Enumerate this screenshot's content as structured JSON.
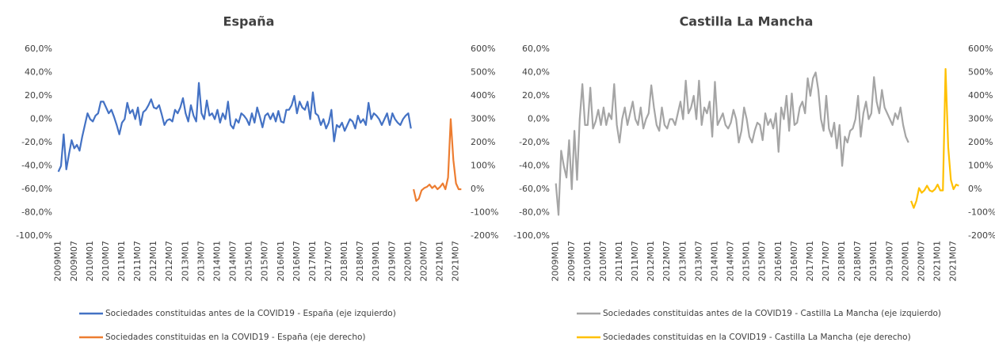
{
  "chart_data": [
    {
      "type": "line",
      "title": "España",
      "categories": [
        "2009M01",
        null,
        null,
        null,
        null,
        null,
        "2009M07",
        null,
        null,
        null,
        null,
        null,
        "2010M01",
        null,
        null,
        null,
        null,
        null,
        "2010M07",
        null,
        null,
        null,
        null,
        null,
        "2011M01",
        null,
        null,
        null,
        null,
        null,
        "2011M07",
        null,
        null,
        null,
        null,
        null,
        "2012M01",
        null,
        null,
        null,
        null,
        null,
        "2012M07",
        null,
        null,
        null,
        null,
        null,
        "2013M01",
        null,
        null,
        null,
        null,
        null,
        "2013M07",
        null,
        null,
        null,
        null,
        null,
        "2014M01",
        null,
        null,
        null,
        null,
        null,
        "2014M07",
        null,
        null,
        null,
        null,
        null,
        "2015M01",
        null,
        null,
        null,
        null,
        null,
        "2015M07",
        null,
        null,
        null,
        null,
        null,
        "2016M01",
        null,
        null,
        null,
        null,
        null,
        "2016M07",
        null,
        null,
        null,
        null,
        null,
        "2017M01",
        null,
        null,
        null,
        null,
        null,
        "2017M07",
        null,
        null,
        null,
        null,
        null,
        "2018M01",
        null,
        null,
        null,
        null,
        null,
        "2018M07",
        null,
        null,
        null,
        null,
        null,
        "2019M01",
        null,
        null,
        null,
        null,
        null,
        "2019M07",
        null,
        null,
        null,
        null,
        null,
        "2020M01",
        null,
        null,
        null,
        null,
        null,
        "2020M07",
        null,
        null,
        null,
        null,
        null,
        "2021M01",
        null,
        null,
        null,
        null,
        null,
        "2021M07",
        null,
        null
      ],
      "series": [
        {
          "name": "Sociedades constituidas antes de la COVID19 - España (eje izquierdo)",
          "color": "#4472c4",
          "axis": "y",
          "values": [
            -45,
            -40,
            -13,
            -43,
            -30,
            -18,
            -25,
            -22,
            -27,
            -15,
            -5,
            5,
            0,
            -2,
            3,
            5,
            15,
            15,
            10,
            5,
            8,
            2,
            -5,
            -13,
            -3,
            0,
            14,
            5,
            8,
            0,
            10,
            -5,
            6,
            8,
            12,
            17,
            10,
            9,
            12,
            4,
            -5,
            -1,
            0,
            -2,
            8,
            5,
            10,
            18,
            5,
            -2,
            12,
            3,
            -2,
            31,
            5,
            0,
            16,
            3,
            5,
            0,
            8,
            -3,
            5,
            0,
            15,
            -5,
            -8,
            0,
            -3,
            5,
            3,
            0,
            -5,
            5,
            -3,
            10,
            2,
            -7,
            3,
            5,
            0,
            5,
            -2,
            7,
            -2,
            -3,
            8,
            8,
            12,
            20,
            5,
            15,
            10,
            8,
            15,
            0,
            23,
            5,
            3,
            -5,
            0,
            -8,
            -3,
            8,
            -19,
            -5,
            -7,
            -3,
            -10,
            -5,
            0,
            -2,
            -8,
            3,
            -3,
            0,
            -5,
            14,
            0,
            5,
            3,
            0,
            -5,
            0,
            5,
            -5,
            5,
            0,
            -3,
            -5,
            0,
            3,
            5,
            -8,
            null,
            null,
            null,
            null,
            null,
            null,
            null,
            null,
            null,
            null,
            null,
            null,
            null,
            null,
            null,
            null,
            null,
            null,
            null
          ]
        },
        {
          "name": "Sociedades constituidas en la COVID19 - España (eje derecho)",
          "color": "#ed7d31",
          "axis": "y2",
          "values": [
            null,
            null,
            null,
            null,
            null,
            null,
            null,
            null,
            null,
            null,
            null,
            null,
            null,
            null,
            null,
            null,
            null,
            null,
            null,
            null,
            null,
            null,
            null,
            null,
            null,
            null,
            null,
            null,
            null,
            null,
            null,
            null,
            null,
            null,
            null,
            null,
            null,
            null,
            null,
            null,
            null,
            null,
            null,
            null,
            null,
            null,
            null,
            null,
            null,
            null,
            null,
            null,
            null,
            null,
            null,
            null,
            null,
            null,
            null,
            null,
            null,
            null,
            null,
            null,
            null,
            null,
            null,
            null,
            null,
            null,
            null,
            null,
            null,
            null,
            null,
            null,
            null,
            null,
            null,
            null,
            null,
            null,
            null,
            null,
            null,
            null,
            null,
            null,
            null,
            null,
            null,
            null,
            null,
            null,
            null,
            null,
            null,
            null,
            null,
            null,
            null,
            null,
            null,
            null,
            null,
            null,
            null,
            null,
            null,
            null,
            null,
            null,
            null,
            null,
            null,
            null,
            null,
            null,
            null,
            null,
            null,
            null,
            null,
            null,
            null,
            null,
            null,
            null,
            null,
            null,
            null,
            null,
            null,
            null,
            0,
            -50,
            -40,
            -5,
            5,
            10,
            20,
            5,
            15,
            0,
            10,
            25,
            0,
            50,
            300,
            125,
            25,
            0,
            0
          ]
        }
      ],
      "ylim": [
        -100,
        60
      ],
      "yticks": [
        {
          "value": -100,
          "label": "-100,0%"
        },
        {
          "value": -80,
          "label": "-80,0%"
        },
        {
          "value": -60,
          "label": "-60,0%"
        },
        {
          "value": -40,
          "label": "-40,0%"
        },
        {
          "value": -20,
          "label": "-20,0%"
        },
        {
          "value": 0,
          "label": "0,0%"
        },
        {
          "value": 20,
          "label": "20,0%"
        },
        {
          "value": 40,
          "label": "40,0%"
        },
        {
          "value": 60,
          "label": "60,0%"
        }
      ],
      "y2lim": [
        -200,
        600
      ],
      "y2ticks": [
        {
          "value": -200,
          "label": "-200%"
        },
        {
          "value": -100,
          "label": "-100%"
        },
        {
          "value": 0,
          "label": "0%"
        },
        {
          "value": 100,
          "label": "100%"
        },
        {
          "value": 200,
          "label": "200%"
        },
        {
          "value": 300,
          "label": "300%"
        },
        {
          "value": 400,
          "label": "400%"
        },
        {
          "value": 500,
          "label": "500%"
        },
        {
          "value": 600,
          "label": "600%"
        }
      ],
      "grid": false
    },
    {
      "type": "line",
      "title": "Castilla La Mancha",
      "categories": [
        "2009M01",
        null,
        null,
        null,
        null,
        null,
        "2009M07",
        null,
        null,
        null,
        null,
        null,
        "2010M01",
        null,
        null,
        null,
        null,
        null,
        "2010M07",
        null,
        null,
        null,
        null,
        null,
        "2011M01",
        null,
        null,
        null,
        null,
        null,
        "2011M07",
        null,
        null,
        null,
        null,
        null,
        "2012M01",
        null,
        null,
        null,
        null,
        null,
        "2012M07",
        null,
        null,
        null,
        null,
        null,
        "2013M01",
        null,
        null,
        null,
        null,
        null,
        "2013M07",
        null,
        null,
        null,
        null,
        null,
        "2014M01",
        null,
        null,
        null,
        null,
        null,
        "2014M07",
        null,
        null,
        null,
        null,
        null,
        "2015M01",
        null,
        null,
        null,
        null,
        null,
        "2015M07",
        null,
        null,
        null,
        null,
        null,
        "2016M01",
        null,
        null,
        null,
        null,
        null,
        "2016M07",
        null,
        null,
        null,
        null,
        null,
        "2017M01",
        null,
        null,
        null,
        null,
        null,
        "2017M07",
        null,
        null,
        null,
        null,
        null,
        "2018M01",
        null,
        null,
        null,
        null,
        null,
        "2018M07",
        null,
        null,
        null,
        null,
        null,
        "2019M01",
        null,
        null,
        null,
        null,
        null,
        "2019M07",
        null,
        null,
        null,
        null,
        null,
        "2020M01",
        null,
        null,
        null,
        null,
        null,
        "2020M07",
        null,
        null,
        null,
        null,
        null,
        "2021M01",
        null,
        null,
        null,
        null,
        null,
        "2021M07",
        null,
        null
      ],
      "series": [
        {
          "name": "Sociedades constituidas antes de la COVID19 - Castilla La Mancha (eje izquierdo)",
          "color": "#a5a5a5",
          "axis": "y",
          "values": [
            -55,
            -82,
            -27,
            -40,
            -50,
            -18,
            -60,
            -10,
            -52,
            0,
            30,
            -5,
            -5,
            27,
            -8,
            -2,
            8,
            -5,
            10,
            -5,
            5,
            0,
            30,
            -5,
            -20,
            0,
            10,
            -5,
            5,
            15,
            0,
            -5,
            10,
            -8,
            0,
            5,
            29,
            10,
            -5,
            -10,
            10,
            -5,
            -8,
            0,
            0,
            -5,
            5,
            15,
            0,
            33,
            5,
            10,
            20,
            0,
            33,
            -5,
            10,
            5,
            15,
            -15,
            32,
            -5,
            0,
            5,
            -5,
            -8,
            -3,
            8,
            0,
            -20,
            -10,
            10,
            0,
            -15,
            -20,
            -10,
            -3,
            -5,
            -18,
            5,
            -5,
            0,
            -8,
            5,
            -28,
            10,
            0,
            20,
            -10,
            22,
            -5,
            -3,
            10,
            15,
            5,
            35,
            20,
            35,
            40,
            25,
            0,
            -10,
            20,
            -8,
            -15,
            -3,
            -25,
            -5,
            -40,
            -15,
            -20,
            -10,
            -8,
            0,
            20,
            -15,
            5,
            15,
            0,
            5,
            36,
            15,
            5,
            25,
            10,
            5,
            0,
            -5,
            5,
            0,
            10,
            -5,
            -15,
            -20,
            null,
            null,
            null,
            null,
            null,
            null,
            null,
            null,
            null,
            null,
            null,
            null,
            null,
            null,
            null,
            null,
            null,
            null,
            null
          ]
        },
        {
          "name": "Sociedades constituidas en la COVID19 - Castilla La Mancha (eje derecho)",
          "color": "#ffc000",
          "axis": "y2",
          "values": [
            null,
            null,
            null,
            null,
            null,
            null,
            null,
            null,
            null,
            null,
            null,
            null,
            null,
            null,
            null,
            null,
            null,
            null,
            null,
            null,
            null,
            null,
            null,
            null,
            null,
            null,
            null,
            null,
            null,
            null,
            null,
            null,
            null,
            null,
            null,
            null,
            null,
            null,
            null,
            null,
            null,
            null,
            null,
            null,
            null,
            null,
            null,
            null,
            null,
            null,
            null,
            null,
            null,
            null,
            null,
            null,
            null,
            null,
            null,
            null,
            null,
            null,
            null,
            null,
            null,
            null,
            null,
            null,
            null,
            null,
            null,
            null,
            null,
            null,
            null,
            null,
            null,
            null,
            null,
            null,
            null,
            null,
            null,
            null,
            null,
            null,
            null,
            null,
            null,
            null,
            null,
            null,
            null,
            null,
            null,
            null,
            null,
            null,
            null,
            null,
            null,
            null,
            null,
            null,
            null,
            null,
            null,
            null,
            null,
            null,
            null,
            null,
            null,
            null,
            null,
            null,
            null,
            null,
            null,
            null,
            null,
            null,
            null,
            null,
            null,
            null,
            null,
            null,
            null,
            null,
            null,
            null,
            null,
            null,
            -50,
            -80,
            -50,
            5,
            -15,
            -5,
            15,
            -5,
            -10,
            0,
            20,
            -5,
            -5,
            515,
            180,
            40,
            0,
            20,
            15
          ]
        }
      ],
      "ylim": [
        -100,
        60
      ],
      "yticks": [
        {
          "value": -100,
          "label": "-100,0%"
        },
        {
          "value": -80,
          "label": "-80,0%"
        },
        {
          "value": -60,
          "label": "-60,0%"
        },
        {
          "value": -40,
          "label": "-40,0%"
        },
        {
          "value": -20,
          "label": "-20,0%"
        },
        {
          "value": 0,
          "label": "0,0%"
        },
        {
          "value": 20,
          "label": "20,0%"
        },
        {
          "value": 40,
          "label": "40,0%"
        },
        {
          "value": 60,
          "label": "60,0%"
        }
      ],
      "y2lim": [
        -200,
        600
      ],
      "y2ticks": [
        {
          "value": -200,
          "label": "-200%"
        },
        {
          "value": -100,
          "label": "-100%"
        },
        {
          "value": 0,
          "label": "0%"
        },
        {
          "value": 100,
          "label": "100%"
        },
        {
          "value": 200,
          "label": "200%"
        },
        {
          "value": 300,
          "label": "300%"
        },
        {
          "value": 400,
          "label": "400%"
        },
        {
          "value": 500,
          "label": "500%"
        },
        {
          "value": 600,
          "label": "600%"
        }
      ],
      "grid": false
    }
  ]
}
